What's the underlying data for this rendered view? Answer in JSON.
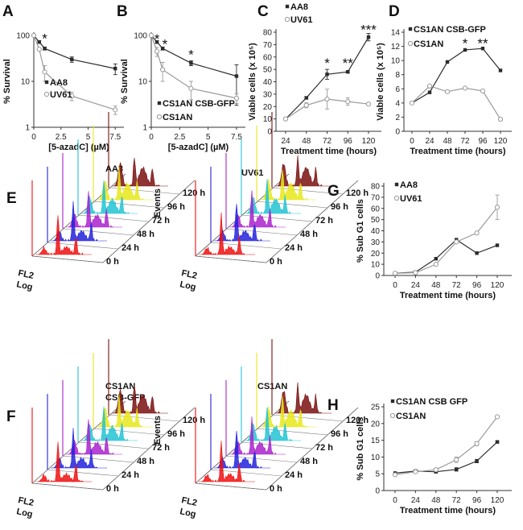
{
  "figure": {
    "panel_labels": [
      "A",
      "B",
      "C",
      "D",
      "E",
      "F",
      "G",
      "H"
    ],
    "colors": {
      "dark": "#2b2b2b",
      "light": "#9a9a9a"
    }
  },
  "chart_data": [
    {
      "id": "A",
      "type": "line",
      "yscale": "log",
      "xlabel": "[5-azadC] (µM)",
      "ylabel": "% Survival",
      "xlim": [
        0,
        8
      ],
      "ylim": [
        1,
        100
      ],
      "xticks": [
        0,
        2.5,
        5,
        7.5
      ],
      "yticks": [
        1,
        10,
        100
      ],
      "series": [
        {
          "name": "AA8",
          "marker": "square",
          "color": "#2b2b2b",
          "x": [
            0,
            0.5,
            1,
            3.5,
            7.5
          ],
          "y": [
            100,
            72,
            52,
            30,
            19
          ],
          "err": [
            0,
            5,
            4,
            4,
            5
          ]
        },
        {
          "name": "UV61",
          "marker": "circle",
          "color": "#9a9a9a",
          "x": [
            0,
            0.5,
            1,
            3.5,
            7.5
          ],
          "y": [
            100,
            50,
            16,
            4.8,
            2.4
          ],
          "err": [
            0,
            0,
            6,
            1,
            0.5
          ]
        }
      ],
      "annotations": [
        {
          "text": "*",
          "x": 1,
          "y": 90
        }
      ]
    },
    {
      "id": "B",
      "type": "line",
      "yscale": "log",
      "xlabel": "[5-azadC] (µM)",
      "ylabel": "% Survival",
      "xlim": [
        0,
        8
      ],
      "ylim": [
        1,
        100
      ],
      "xticks": [
        0,
        2.5,
        5,
        7.5
      ],
      "yticks": [
        1,
        10,
        100
      ],
      "series": [
        {
          "name": "CS1AN CSB-GFP",
          "marker": "square",
          "color": "#2b2b2b",
          "x": [
            0,
            0.5,
            1,
            3.5,
            7.5
          ],
          "y": [
            100,
            72,
            52,
            25,
            13
          ],
          "err": [
            0,
            5,
            4,
            3,
            10
          ]
        },
        {
          "name": "CS1AN",
          "marker": "circle",
          "color": "#9a9a9a",
          "x": [
            0,
            0.5,
            1,
            3.5,
            7.5
          ],
          "y": [
            100,
            45,
            18,
            7,
            4.3
          ],
          "err": [
            0,
            10,
            8,
            3,
            1
          ]
        }
      ],
      "annotations": [
        {
          "text": "*",
          "x": 0.5,
          "y": 88
        },
        {
          "text": "*",
          "x": 1.2,
          "y": 68
        },
        {
          "text": "*",
          "x": 3.5,
          "y": 40
        }
      ]
    },
    {
      "id": "C",
      "type": "line",
      "xlabel": "Treatment time (hours)",
      "ylabel": "Viable cells (x 10⁵)",
      "categories": [
        "24",
        "48",
        "72",
        "96",
        "120"
      ],
      "ylim": [
        0,
        80
      ],
      "yticks": [
        0,
        10,
        20,
        30,
        40,
        50,
        60,
        70,
        80
      ],
      "series": [
        {
          "name": "AA8",
          "marker": "square",
          "color": "#2b2b2b",
          "values": [
            10,
            27,
            46,
            48,
            76
          ],
          "err": [
            1,
            1,
            4,
            1,
            3
          ]
        },
        {
          "name": "UV61",
          "marker": "circle",
          "color": "#9a9a9a",
          "values": [
            10,
            21,
            26,
            24,
            22
          ],
          "err": [
            1,
            2,
            8,
            3,
            1
          ]
        }
      ],
      "annotations": [
        {
          "text": "*",
          "x": "72",
          "y": 56
        },
        {
          "text": "**",
          "x": "96",
          "y": 56
        },
        {
          "text": "***",
          "x": "120",
          "y": 83
        }
      ]
    },
    {
      "id": "D",
      "type": "line",
      "xlabel": "Treatment time (hours)",
      "ylabel": "Viable cells (x 10⁵)",
      "categories": [
        "0",
        "24",
        "48",
        "72",
        "96",
        "120"
      ],
      "ylim": [
        0,
        14
      ],
      "yticks": [
        0,
        2,
        4,
        6,
        8,
        10,
        12,
        14
      ],
      "series": [
        {
          "name": "CS1AN CSB-GFP",
          "marker": "square",
          "color": "#2b2b2b",
          "values": [
            4,
            5.5,
            9.8,
            11.5,
            11.7,
            8.6
          ],
          "err": [
            0,
            0,
            0,
            0,
            0,
            0
          ]
        },
        {
          "name": "CS1AN",
          "marker": "circle",
          "color": "#9a9a9a",
          "values": [
            4,
            6.4,
            5.6,
            6.1,
            5.7,
            1.7
          ],
          "err": [
            0,
            0,
            0,
            0,
            0,
            0
          ]
        }
      ],
      "annotations": [
        {
          "text": "*",
          "x": "72",
          "y": 12.6
        },
        {
          "text": "**",
          "x": "96",
          "y": 12.6
        }
      ]
    },
    {
      "id": "G",
      "type": "line",
      "xlabel": "Treatment time (hours)",
      "ylabel": "% Sub G1 cells",
      "categories": [
        "0",
        "24",
        "48",
        "72",
        "96",
        "120"
      ],
      "ylim": [
        0,
        80
      ],
      "yticks": [
        0,
        10,
        20,
        30,
        40,
        50,
        60,
        70,
        80
      ],
      "series": [
        {
          "name": "AA8",
          "marker": "square",
          "color": "#2b2b2b",
          "values": [
            2,
            3,
            15,
            32,
            20,
            27
          ],
          "err": [
            0,
            0,
            0,
            0,
            0,
            0
          ]
        },
        {
          "name": "UV61",
          "marker": "circle",
          "color": "#9a9a9a",
          "values": [
            2,
            2.5,
            10,
            30,
            38,
            61
          ],
          "err": [
            0,
            0,
            0,
            0,
            0,
            11
          ]
        }
      ]
    },
    {
      "id": "H",
      "type": "line",
      "xlabel": "Treatment time (hours)",
      "ylabel": "% Sub G1 cells",
      "categories": [
        "0",
        "24",
        "48",
        "72",
        "96",
        "120"
      ],
      "ylim": [
        0,
        25
      ],
      "yticks": [
        0,
        5,
        10,
        15,
        20,
        25
      ],
      "series": [
        {
          "name": "CS1AN CSB GFP",
          "marker": "square",
          "color": "#2b2b2b",
          "values": [
            5.2,
            5.8,
            5.6,
            6.3,
            8.8,
            14.5
          ],
          "err": [
            0,
            0.4,
            0.3,
            0.5,
            0.5,
            0.3
          ]
        },
        {
          "name": "CS1AN",
          "marker": "circle",
          "color": "#9a9a9a",
          "values": [
            4.7,
            5.6,
            6.2,
            9.2,
            14,
            22
          ],
          "err": [
            0,
            0.3,
            0.5,
            0.8,
            0.6,
            0.3
          ]
        }
      ]
    }
  ],
  "histograms": {
    "axis_labels": {
      "y": "Events",
      "x_line1": "FL2",
      "x_line2": "Log"
    },
    "time_labels": [
      "0 h",
      "24 h",
      "48 h",
      "72 h",
      "96 h",
      "120 h"
    ],
    "trace_colors": [
      "#ee1111",
      "#2222dd",
      "#aa22cc",
      "#22c4d4",
      "#e8e81a",
      "#7a1010"
    ],
    "panels": [
      {
        "id": "E",
        "title": "AA8"
      },
      {
        "id": "E2",
        "title": "UV61"
      },
      {
        "id": "F",
        "title": "CS1AN\nCSB-GFP"
      },
      {
        "id": "F2",
        "title": "CS1AN"
      }
    ]
  }
}
